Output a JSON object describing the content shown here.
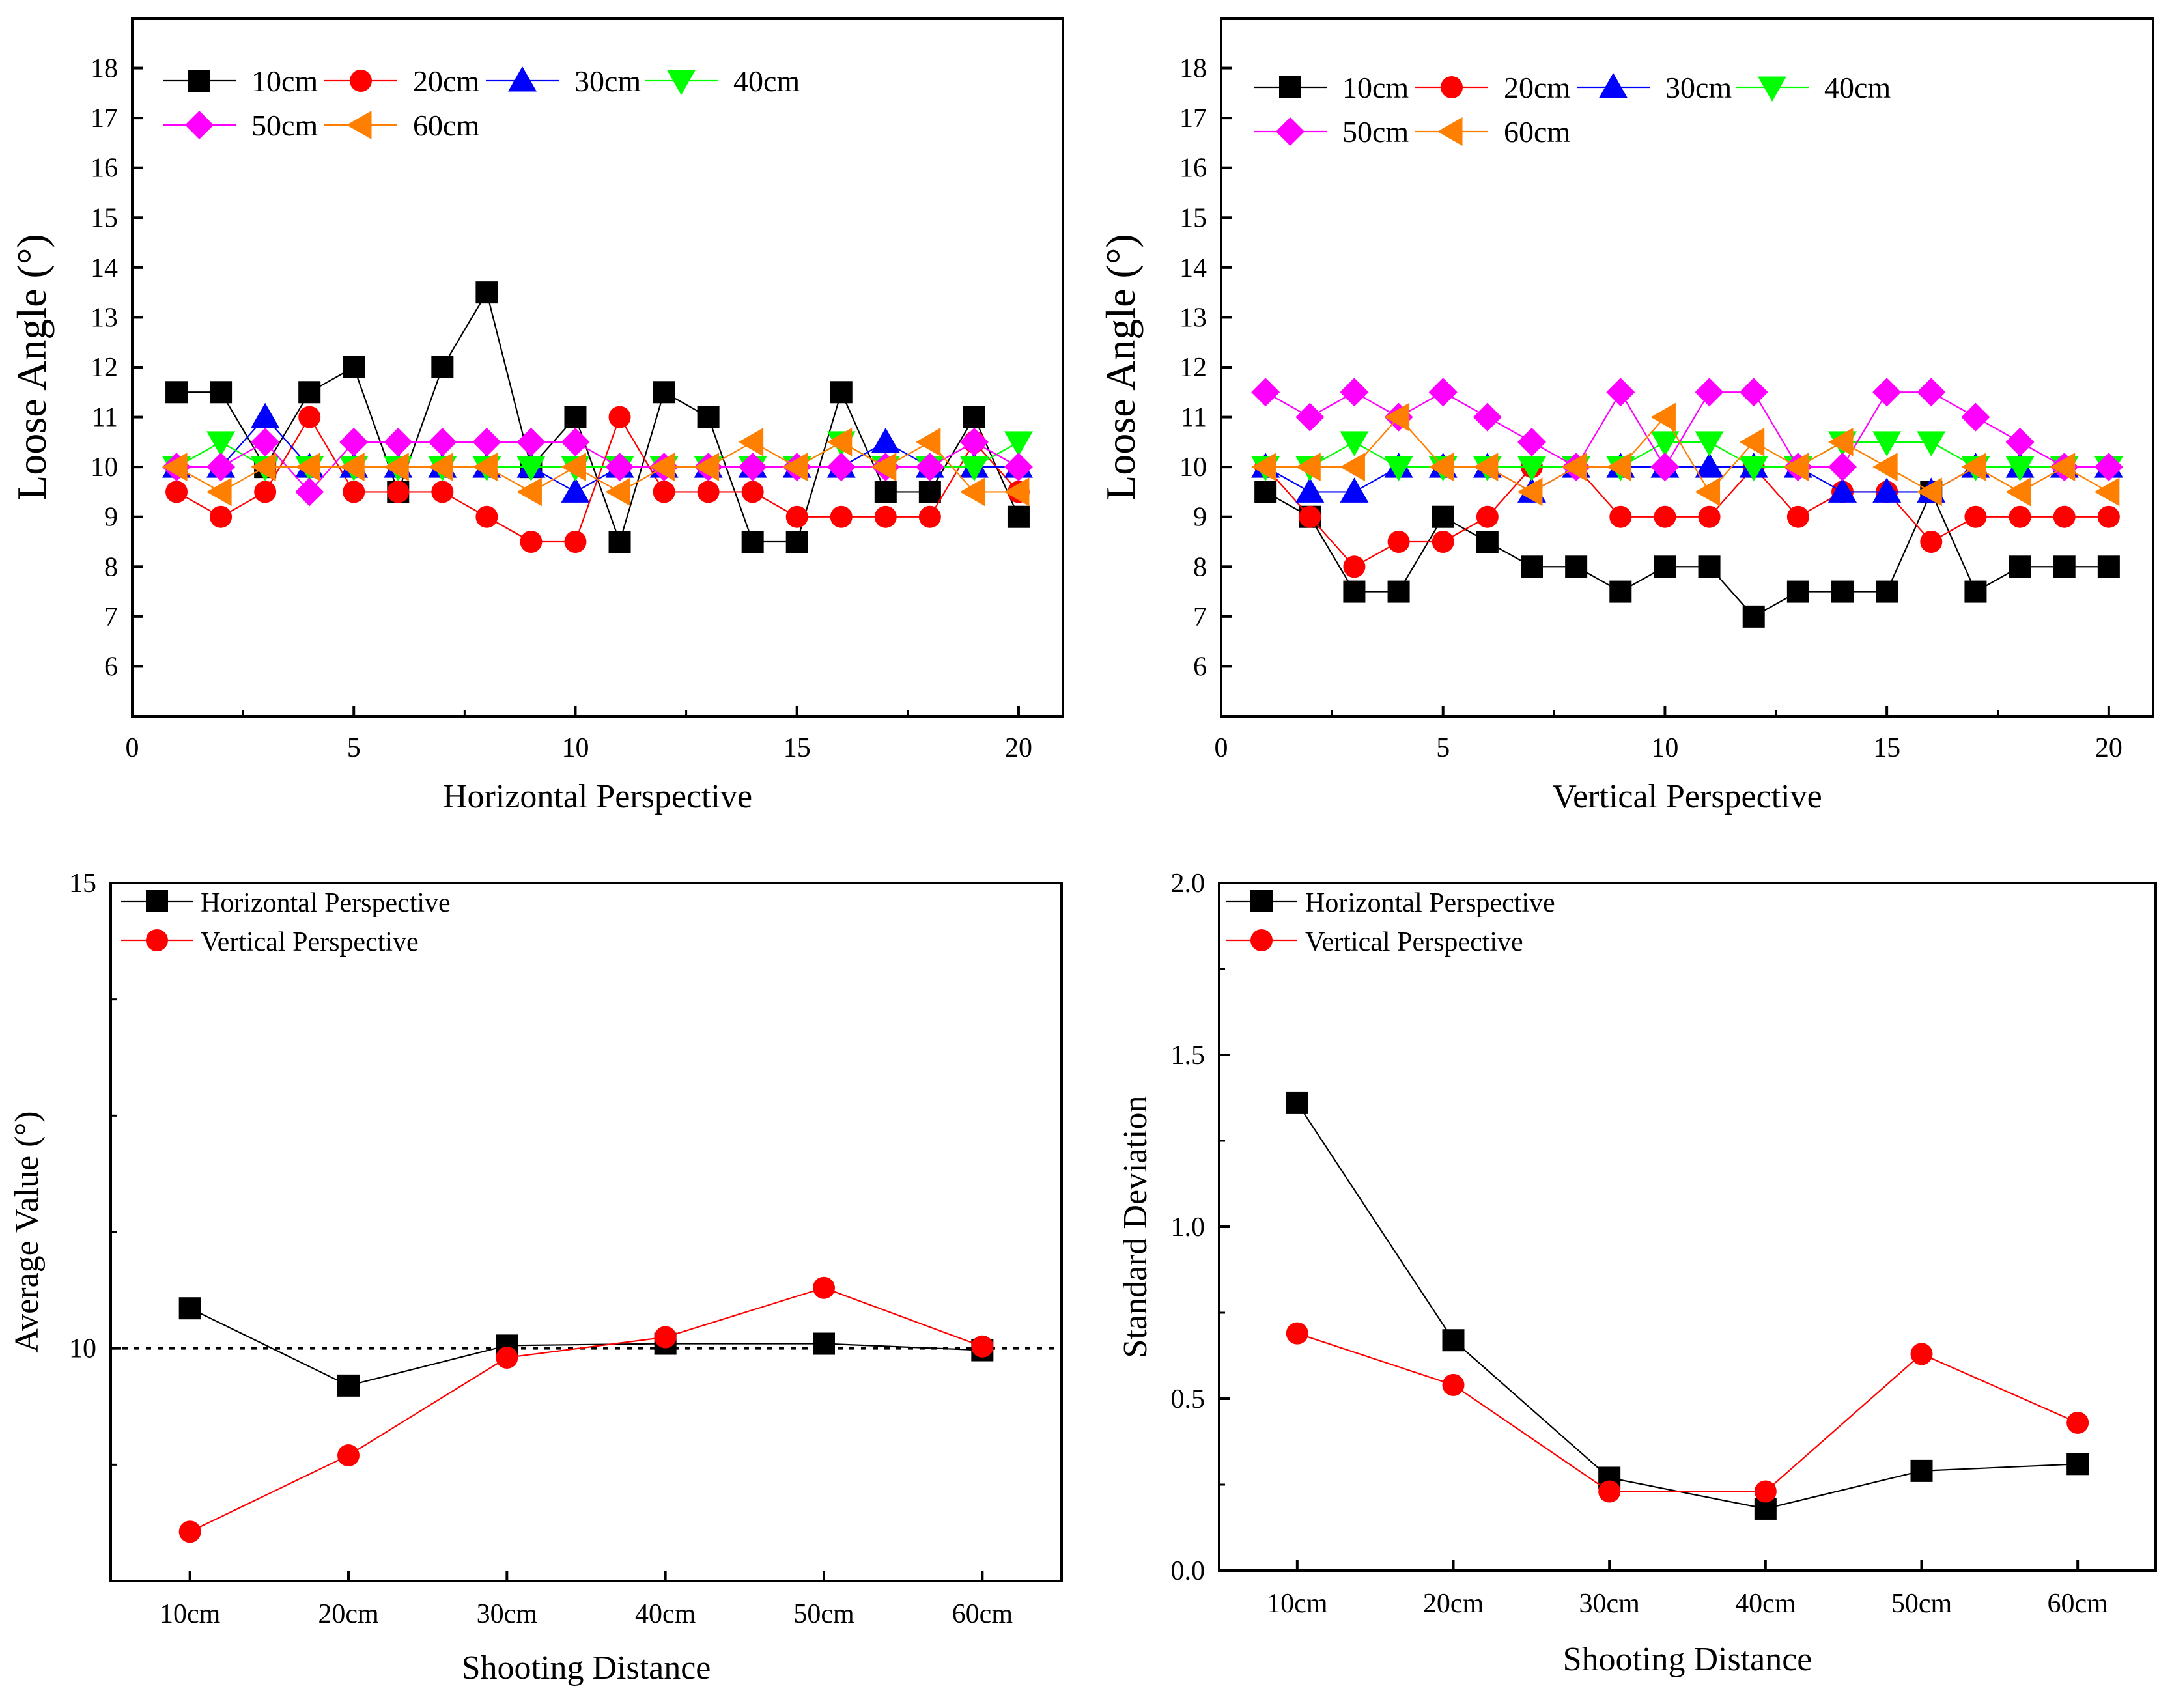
{
  "chart_data": [
    {
      "type": "line",
      "panel": "top-left",
      "xlabel": "Horizontal Perspective",
      "ylabel": "Loose Angle (°)",
      "xlim": [
        0,
        21
      ],
      "ylim": [
        5,
        19
      ],
      "xticks": [
        0,
        5,
        10,
        15,
        20
      ],
      "yticks": [
        6,
        7,
        8,
        9,
        10,
        11,
        12,
        13,
        14,
        15,
        16,
        17,
        18
      ],
      "x": [
        1,
        2,
        3,
        4,
        5,
        6,
        7,
        8,
        9,
        10,
        11,
        12,
        13,
        14,
        15,
        16,
        17,
        18,
        19,
        20
      ],
      "legend_position": "top-left",
      "series": [
        {
          "name": "10cm",
          "color": "#000000",
          "marker": "square",
          "values": [
            11.5,
            11.5,
            10,
            11.5,
            12,
            9.5,
            12,
            13.5,
            10,
            11,
            8.5,
            11.5,
            11,
            8.5,
            8.5,
            11.5,
            9.5,
            9.5,
            11,
            9
          ]
        },
        {
          "name": "20cm",
          "color": "#ff0000",
          "marker": "circle",
          "values": [
            9.5,
            9,
            9.5,
            11,
            9.5,
            9.5,
            9.5,
            9,
            8.5,
            8.5,
            11,
            9.5,
            9.5,
            9.5,
            9,
            9,
            9,
            9,
            10.5,
            9.5
          ]
        },
        {
          "name": "30cm",
          "color": "#0000ff",
          "marker": "triangle-up",
          "values": [
            10,
            10,
            11,
            10,
            10,
            10,
            10,
            10,
            10,
            9.5,
            10,
            10,
            10,
            10,
            10,
            10,
            10.5,
            10,
            10,
            10
          ]
        },
        {
          "name": "40cm",
          "color": "#00ff00",
          "marker": "triangle-down",
          "values": [
            10,
            10.5,
            10,
            10,
            10,
            10,
            10,
            10,
            10,
            10,
            10,
            10,
            10,
            10,
            10,
            10.5,
            10,
            10,
            10,
            10.5
          ]
        },
        {
          "name": "50cm",
          "color": "#ff00ff",
          "marker": "diamond",
          "values": [
            10,
            10,
            10.5,
            9.5,
            10.5,
            10.5,
            10.5,
            10.5,
            10.5,
            10.5,
            10,
            10,
            10,
            10,
            10,
            10,
            10,
            10,
            10.5,
            10
          ]
        },
        {
          "name": "60cm",
          "color": "#ff8000",
          "marker": "triangle-left",
          "values": [
            10,
            9.5,
            10,
            10,
            10,
            10,
            10,
            10,
            9.5,
            10,
            9.5,
            10,
            10,
            10.5,
            10,
            10.5,
            10,
            10.5,
            9.5,
            9.5
          ]
        }
      ]
    },
    {
      "type": "line",
      "panel": "top-right",
      "xlabel": "Vertical Perspective",
      "ylabel": "Loose Angle (°)",
      "xlim": [
        0,
        21
      ],
      "ylim": [
        5,
        19
      ],
      "xticks": [
        0,
        5,
        10,
        15,
        20
      ],
      "yticks": [
        6,
        7,
        8,
        9,
        10,
        11,
        12,
        13,
        14,
        15,
        16,
        17,
        18
      ],
      "x": [
        1,
        2,
        3,
        4,
        5,
        6,
        7,
        8,
        9,
        10,
        11,
        12,
        13,
        14,
        15,
        16,
        17,
        18,
        19,
        20
      ],
      "legend_position": "top-left",
      "series": [
        {
          "name": "10cm",
          "color": "#000000",
          "marker": "square",
          "values": [
            9.5,
            9,
            7.5,
            7.5,
            9,
            8.5,
            8,
            8,
            7.5,
            8,
            8,
            7,
            7.5,
            7.5,
            7.5,
            9.5,
            7.5,
            8,
            8,
            8
          ]
        },
        {
          "name": "20cm",
          "color": "#ff0000",
          "marker": "circle",
          "values": [
            10,
            9,
            8,
            8.5,
            8.5,
            9,
            10,
            10,
            9,
            9,
            9,
            10,
            9,
            9.5,
            9.5,
            8.5,
            9,
            9,
            9,
            9
          ]
        },
        {
          "name": "30cm",
          "color": "#0000ff",
          "marker": "triangle-up",
          "values": [
            10,
            9.5,
            9.5,
            10,
            10,
            10,
            9.5,
            10,
            10,
            10,
            10,
            10,
            10,
            9.5,
            9.5,
            9.5,
            10,
            10,
            10,
            10
          ]
        },
        {
          "name": "40cm",
          "color": "#00ff00",
          "marker": "triangle-down",
          "values": [
            10,
            10,
            10.5,
            10,
            10,
            10,
            10,
            10,
            10,
            10.5,
            10.5,
            10,
            10,
            10.5,
            10.5,
            10.5,
            10,
            10,
            10,
            10
          ]
        },
        {
          "name": "50cm",
          "color": "#ff00ff",
          "marker": "diamond",
          "values": [
            11.5,
            11,
            11.5,
            11,
            11.5,
            11,
            10.5,
            10,
            11.5,
            10,
            11.5,
            11.5,
            10,
            10,
            11.5,
            11.5,
            11,
            10.5,
            10,
            10
          ]
        },
        {
          "name": "60cm",
          "color": "#ff8000",
          "marker": "triangle-left",
          "values": [
            10,
            10,
            10,
            11,
            10,
            10,
            9.5,
            10,
            10,
            11,
            9.5,
            10.5,
            10,
            10.5,
            10,
            9.5,
            10,
            9.5,
            10,
            9.5
          ]
        }
      ]
    },
    {
      "type": "line",
      "panel": "bottom-left",
      "xlabel": "Shooting Distance",
      "ylabel": "Average Value (°)",
      "categories": [
        "10cm",
        "20cm",
        "30cm",
        "40cm",
        "50cm",
        "60cm"
      ],
      "ylim": [
        7.5,
        15
      ],
      "yticks": [
        10,
        15
      ],
      "reference_line": 10,
      "legend_position": "top-left",
      "series": [
        {
          "name": "Horizontal Perspective",
          "color": "#000000",
          "marker": "square",
          "values": [
            10.43,
            9.6,
            10.03,
            10.05,
            10.05,
            9.98
          ]
        },
        {
          "name": "Vertical Perspective",
          "color": "#ff0000",
          "marker": "circle",
          "values": [
            8.03,
            8.85,
            9.9,
            10.12,
            10.65,
            10.02
          ]
        }
      ]
    },
    {
      "type": "line",
      "panel": "bottom-right",
      "xlabel": "Shooting Distance",
      "ylabel": "Standard Deviation",
      "categories": [
        "10cm",
        "20cm",
        "30cm",
        "40cm",
        "50cm",
        "60cm"
      ],
      "ylim": [
        0,
        2
      ],
      "yticks": [
        "0.0",
        "0.5",
        "1.0",
        "1.5",
        "2.0"
      ],
      "legend_position": "top-left",
      "series": [
        {
          "name": "Horizontal Perspective",
          "color": "#000000",
          "marker": "square",
          "values": [
            1.36,
            0.67,
            0.27,
            0.18,
            0.29,
            0.31
          ]
        },
        {
          "name": "Vertical Perspective",
          "color": "#ff0000",
          "marker": "circle",
          "values": [
            0.69,
            0.54,
            0.23,
            0.23,
            0.63,
            0.43
          ]
        }
      ]
    }
  ]
}
